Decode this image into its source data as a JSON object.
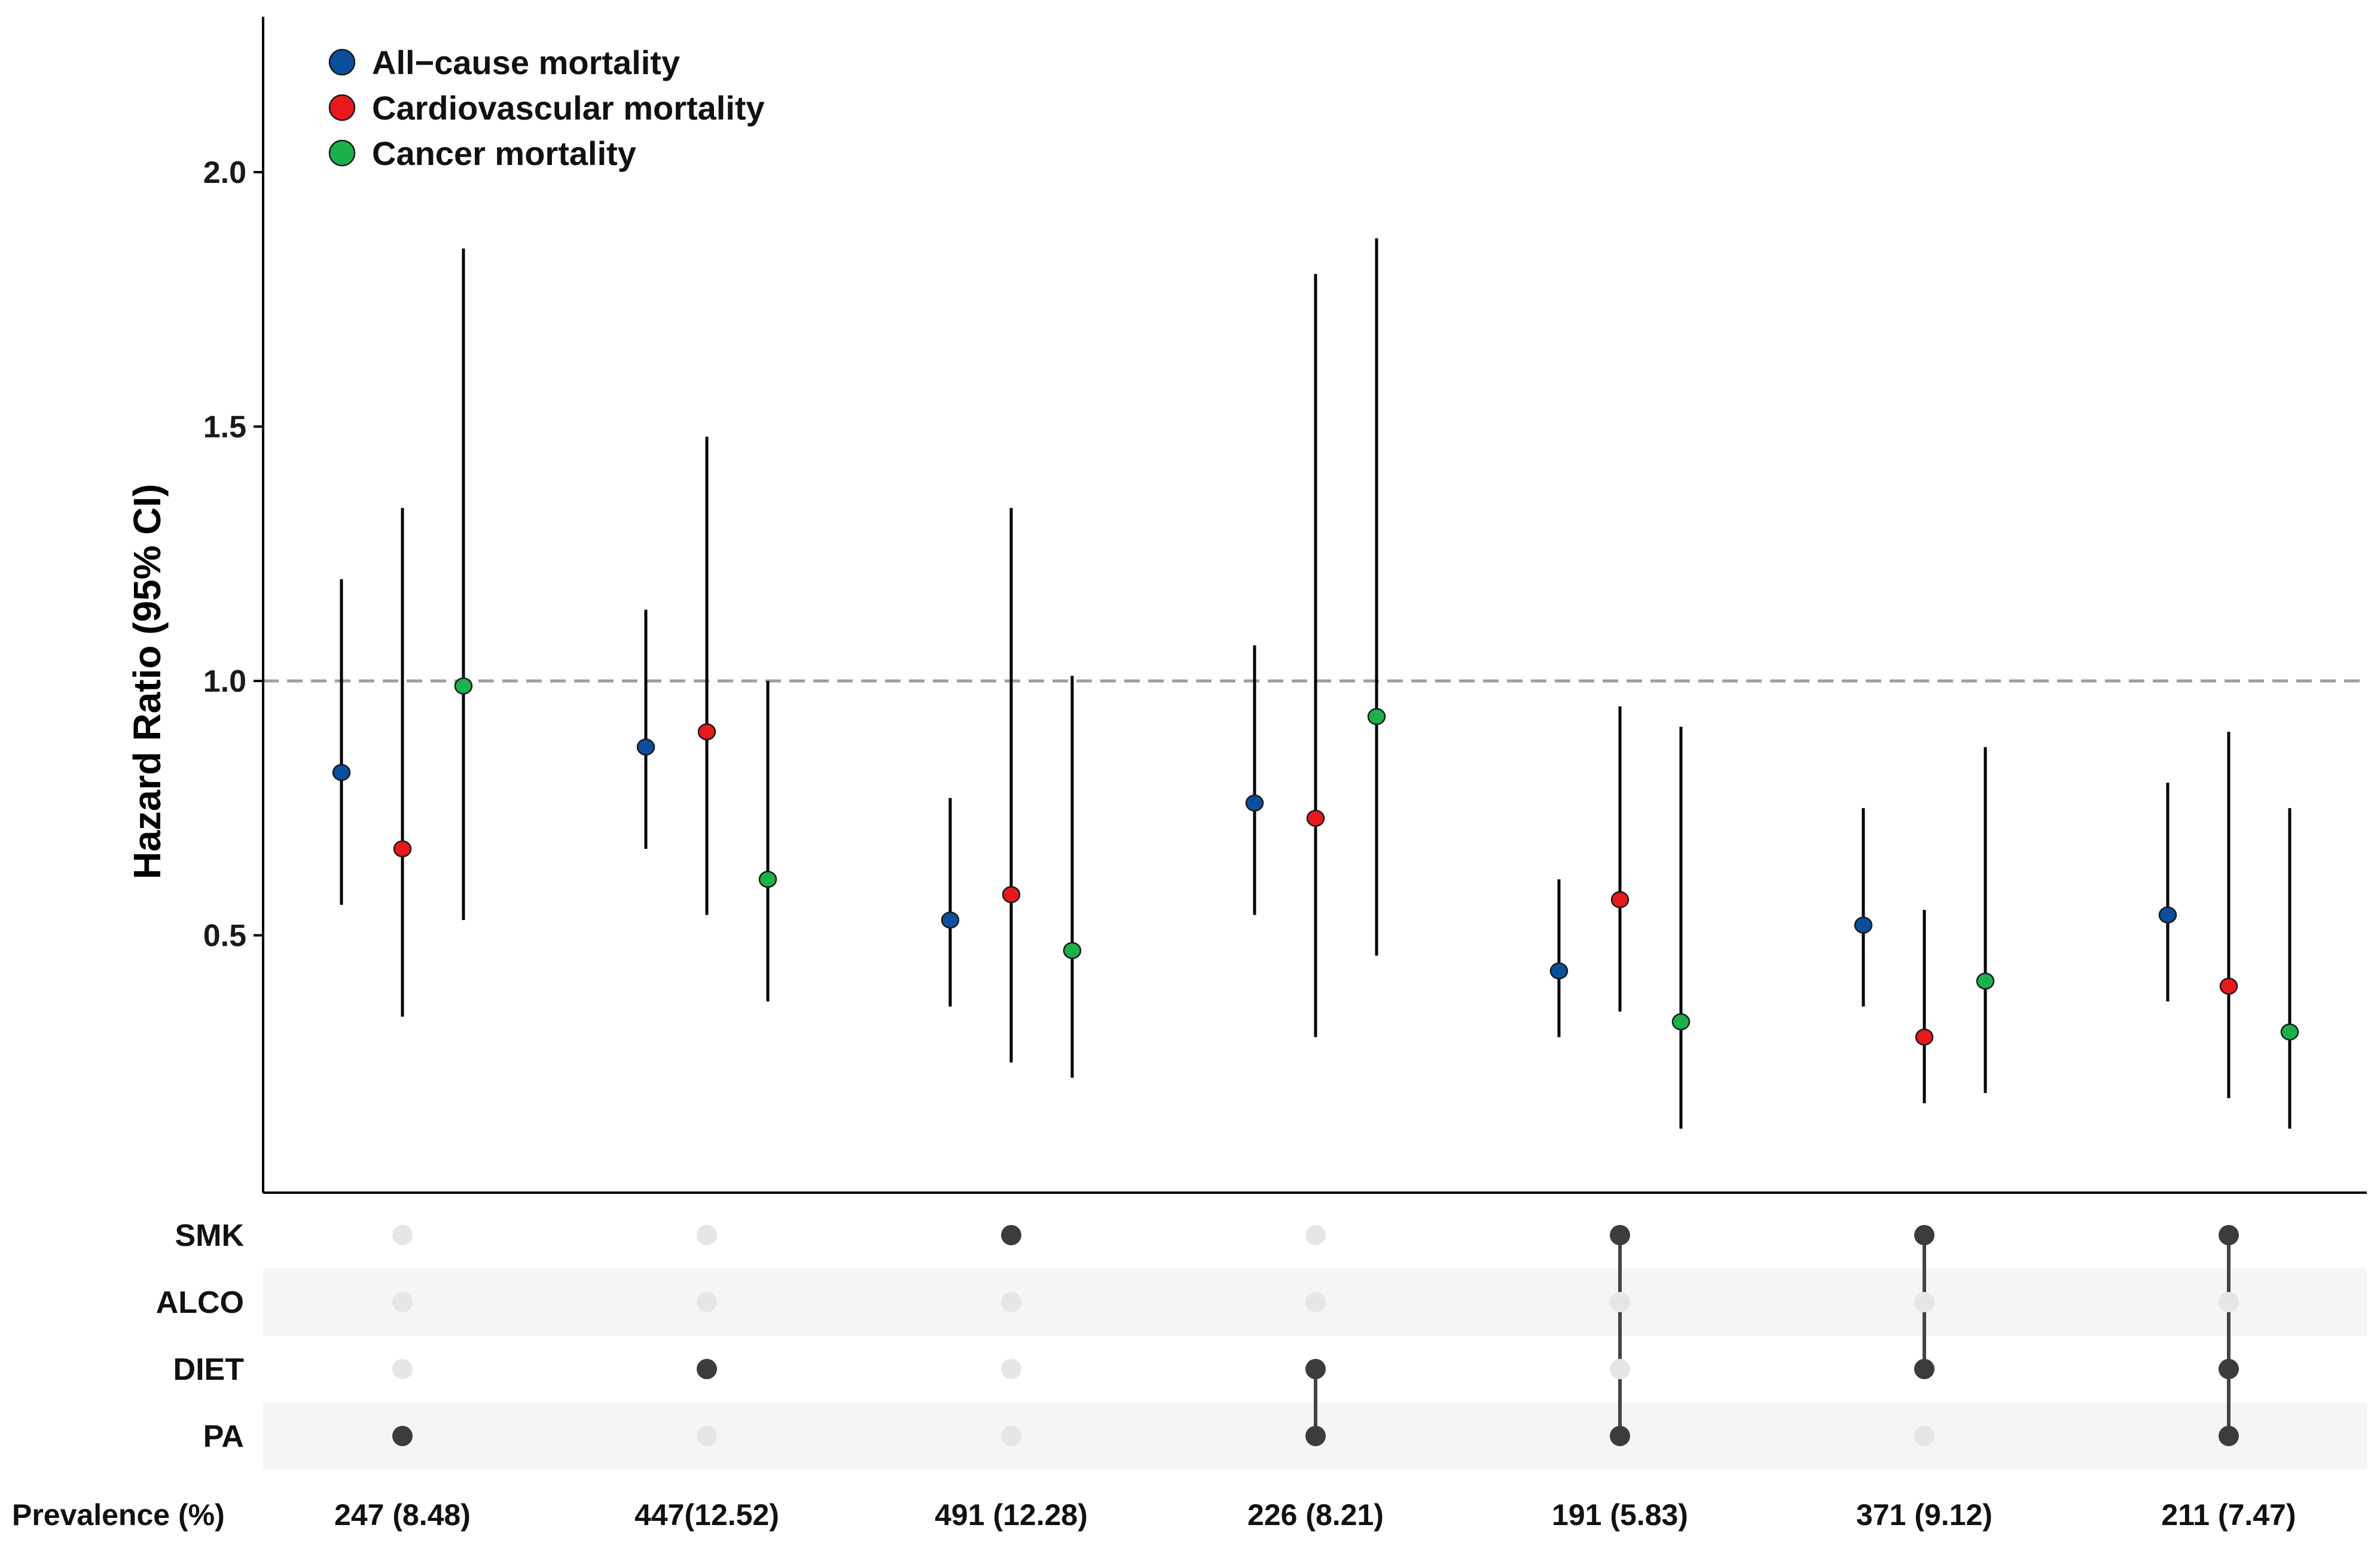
{
  "chart_data": {
    "type": "scatter",
    "subtype": "forest-plot-with-upset-matrix",
    "ylabel": "Hazard Ratio (95% CI)",
    "ylim": [
      0,
      2.3
    ],
    "yticks": [
      0.5,
      1.0,
      1.5,
      2.0
    ],
    "ytick_labels": [
      "0.5",
      "1.0",
      "1.5",
      "2.0"
    ],
    "reference_line": 1.0,
    "legend_position": "top-left",
    "series": [
      {
        "name": "All−cause mortality",
        "color": "#0b4f9c",
        "hr": [
          0.82,
          0.87,
          0.53,
          0.76,
          0.43,
          0.52,
          0.54
        ],
        "lower": [
          0.56,
          0.67,
          0.36,
          0.54,
          0.3,
          0.36,
          0.37
        ],
        "upper": [
          1.2,
          1.14,
          0.77,
          1.07,
          0.61,
          0.75,
          0.8
        ]
      },
      {
        "name": "Cardiovascular mortality",
        "color": "#e8191d",
        "hr": [
          0.67,
          0.9,
          0.58,
          0.73,
          0.57,
          0.3,
          0.4
        ],
        "lower": [
          0.34,
          0.54,
          0.25,
          0.3,
          0.35,
          0.17,
          0.18
        ],
        "upper": [
          1.34,
          1.48,
          1.34,
          1.8,
          0.95,
          0.55,
          0.9
        ]
      },
      {
        "name": "Cancer mortality",
        "color": "#1ab14b",
        "hr": [
          0.99,
          0.61,
          0.47,
          0.93,
          0.33,
          0.41,
          0.31
        ],
        "lower": [
          0.53,
          0.37,
          0.22,
          0.46,
          0.12,
          0.19,
          0.12
        ],
        "upper": [
          1.85,
          1.0,
          1.01,
          1.87,
          0.91,
          0.87,
          0.75
        ]
      }
    ],
    "matrix": {
      "rows": [
        "SMK",
        "ALCO",
        "DIET",
        "PA"
      ],
      "groups": [
        [
          "PA"
        ],
        [
          "DIET"
        ],
        [
          "SMK"
        ],
        [
          "DIET",
          "PA"
        ],
        [
          "SMK",
          "PA"
        ],
        [
          "SMK",
          "DIET"
        ],
        [
          "SMK",
          "DIET",
          "PA"
        ]
      ]
    },
    "prevalence_label": "Prevalence (%)",
    "prevalence": [
      "247 (8.48)",
      "447(12.52)",
      "491 (12.28)",
      "226 (8.21)",
      "191 (5.83)",
      "371 (9.12)",
      "211 (7.47)"
    ]
  }
}
